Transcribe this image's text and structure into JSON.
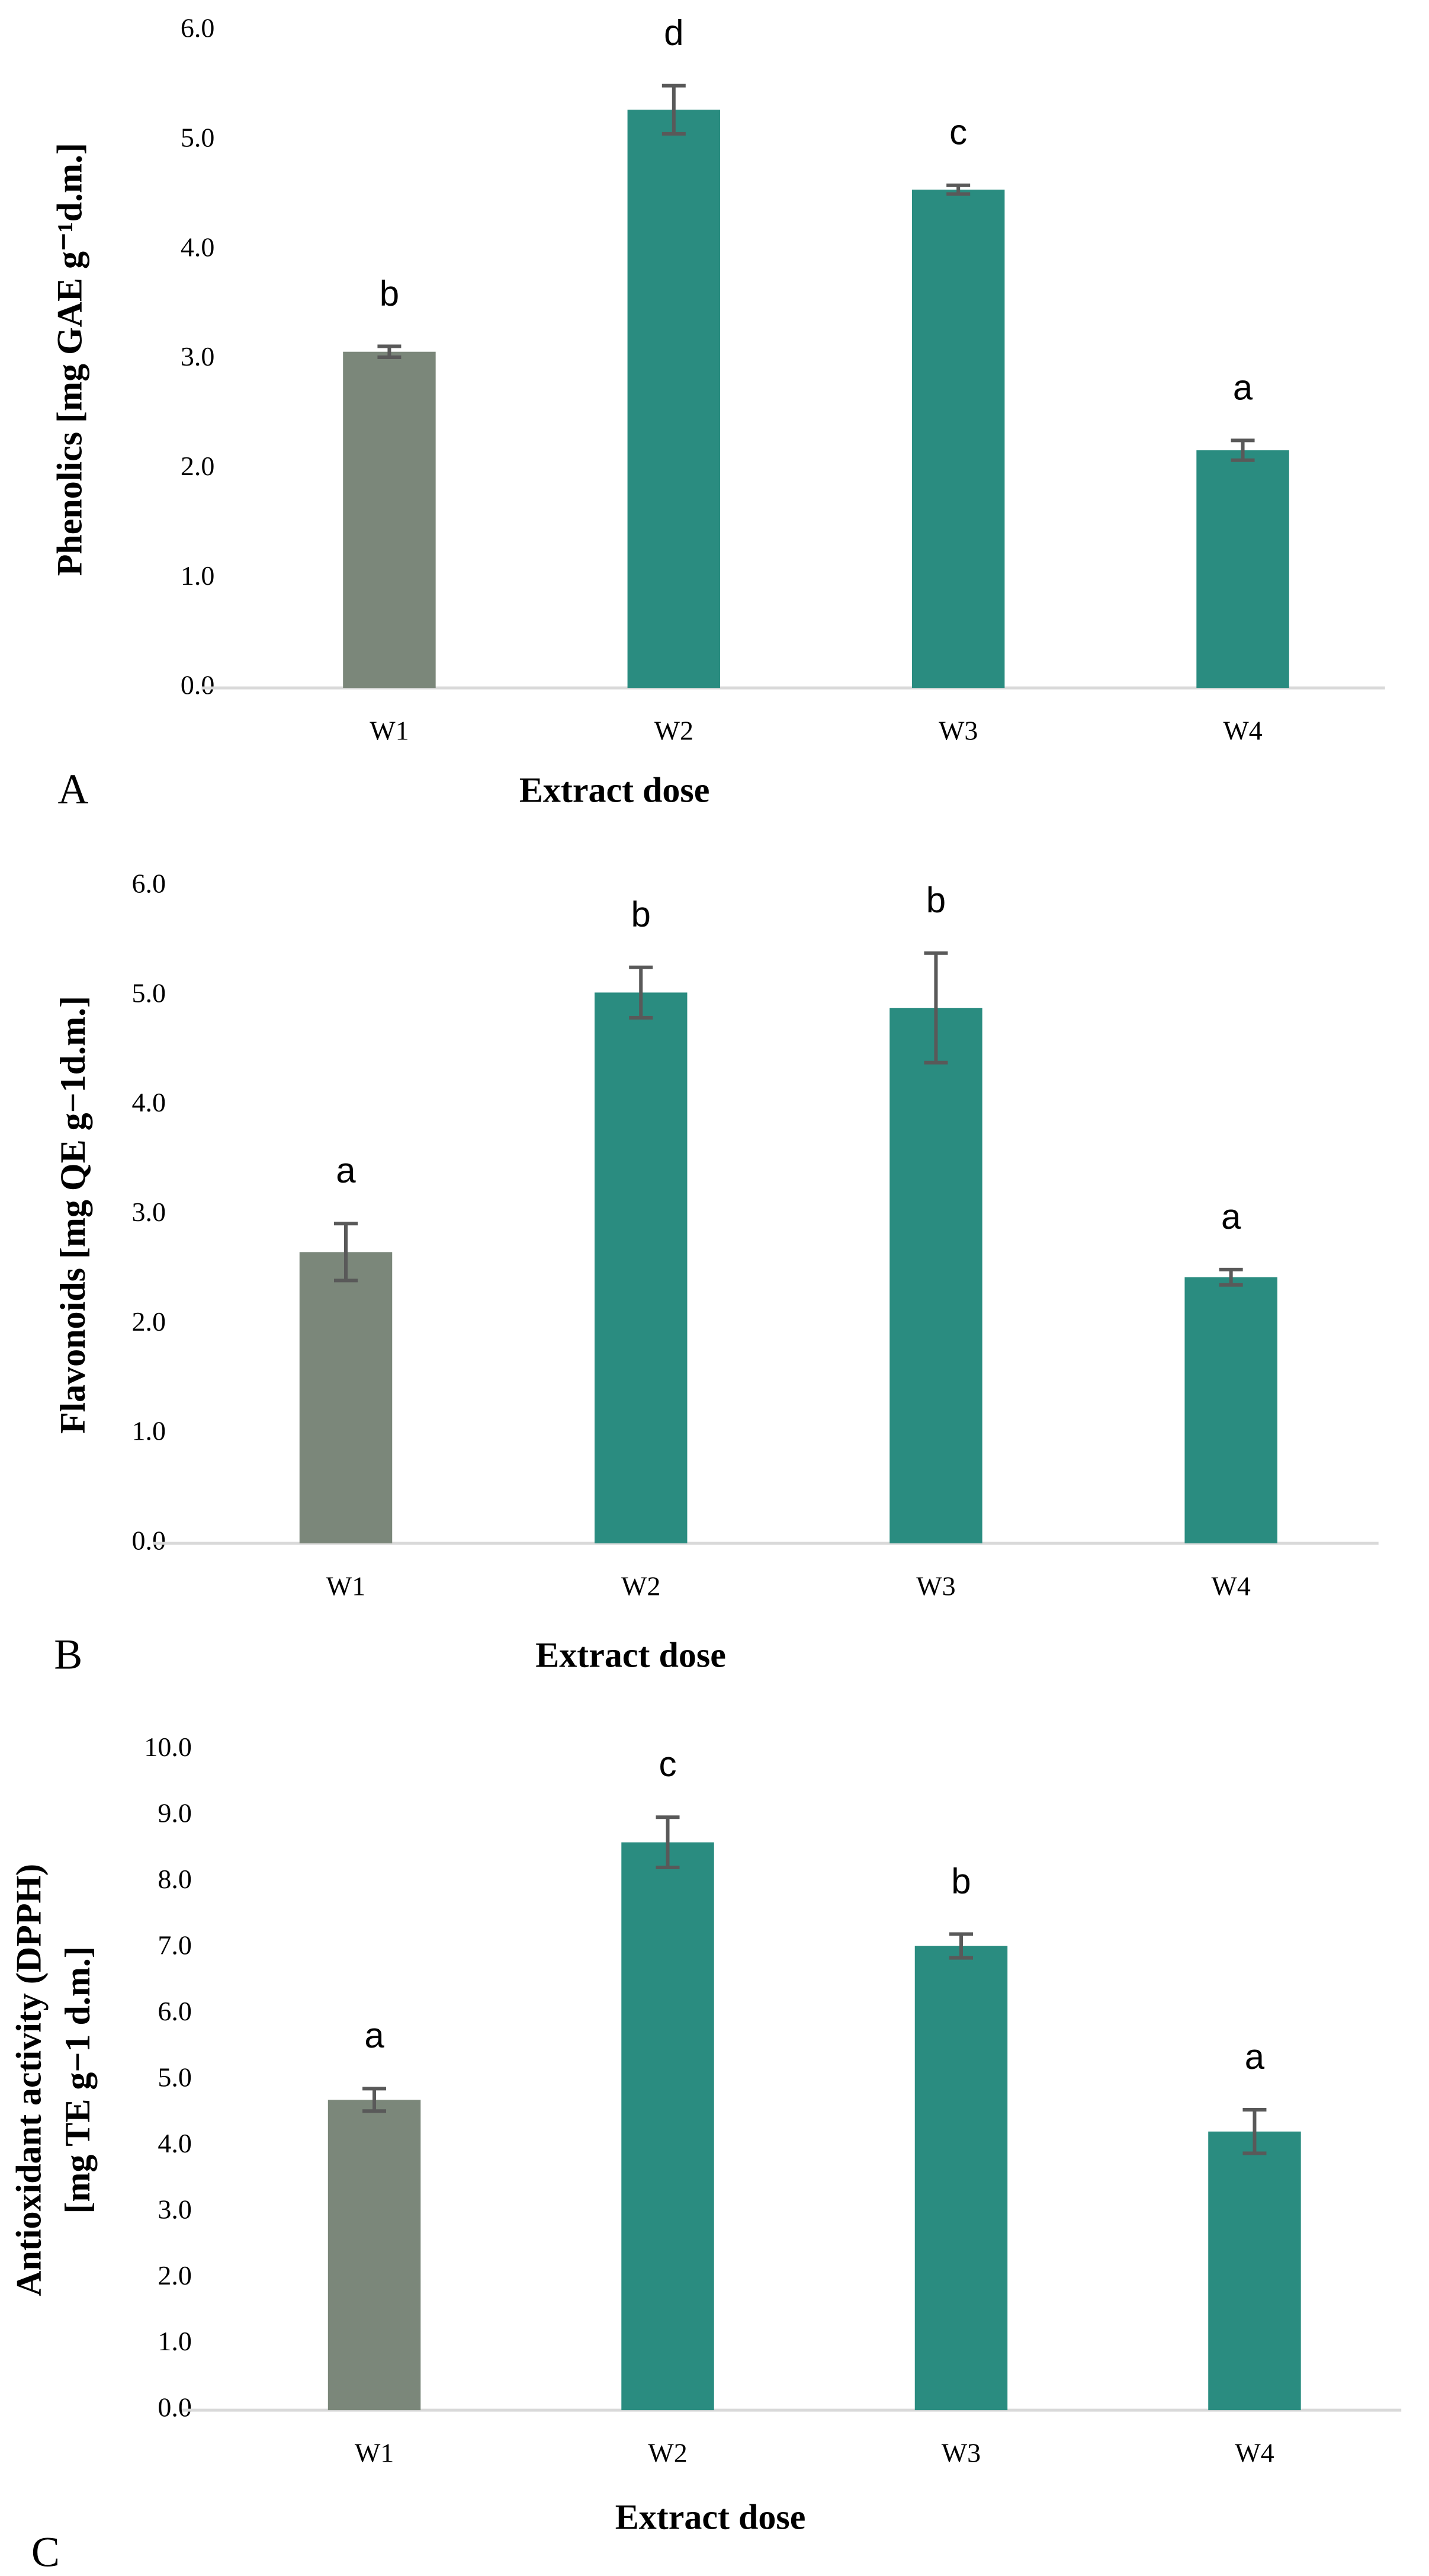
{
  "chart_data": [
    {
      "type": "bar",
      "panel_label": "A",
      "ylabel": [
        "Phenolics [mg GAE g⁻¹d.m.]"
      ],
      "xlabel": "Extract dose",
      "categories": [
        "W1",
        "W2",
        "W3",
        "W4"
      ],
      "values": [
        3.07,
        5.28,
        4.55,
        2.17
      ],
      "errors": [
        0.05,
        0.22,
        0.04,
        0.09
      ],
      "annotations": [
        "b",
        "d",
        "c",
        "a"
      ],
      "colors": [
        "#7b877a",
        "#2a8c80",
        "#2a8c80",
        "#2a8c80"
      ],
      "ylim": [
        0,
        6
      ],
      "yticks": [
        {
          "value": 0,
          "label": "0.0"
        },
        {
          "value": 1,
          "label": "1.0"
        },
        {
          "value": 2,
          "label": "2.0"
        },
        {
          "value": 3,
          "label": "3.0"
        },
        {
          "value": 4,
          "label": "4.0"
        },
        {
          "value": 5,
          "label": "5.0"
        },
        {
          "value": 6,
          "label": "6.0"
        }
      ]
    },
    {
      "type": "bar",
      "panel_label": "B",
      "ylabel": [
        "Flavonoids [mg QE g−1d.m.]"
      ],
      "xlabel": "Extract dose",
      "categories": [
        "W1",
        "W2",
        "W3",
        "W4"
      ],
      "values": [
        2.66,
        5.03,
        4.89,
        2.43
      ],
      "errors": [
        0.26,
        0.23,
        0.5,
        0.07
      ],
      "annotations": [
        "a",
        "b",
        "b",
        "a"
      ],
      "colors": [
        "#7b877a",
        "#2a8c80",
        "#2a8c80",
        "#2a8c80"
      ],
      "ylim": [
        0,
        6
      ],
      "yticks": [
        {
          "value": 0,
          "label": "0.0"
        },
        {
          "value": 1,
          "label": "1.0"
        },
        {
          "value": 2,
          "label": "2.0"
        },
        {
          "value": 3,
          "label": "3.0"
        },
        {
          "value": 4,
          "label": "4.0"
        },
        {
          "value": 5,
          "label": "5.0"
        },
        {
          "value": 6,
          "label": "6.0"
        }
      ]
    },
    {
      "type": "bar",
      "panel_label": "C",
      "ylabel": [
        "Antioxidant activity (DPPH)",
        "[mg TE g−1 d.m.]"
      ],
      "xlabel": "Extract dose",
      "categories": [
        "W1",
        "W2",
        "W3",
        "W4"
      ],
      "values": [
        4.7,
        8.6,
        7.03,
        4.22
      ],
      "errors": [
        0.17,
        0.38,
        0.18,
        0.33
      ],
      "annotations": [
        "a",
        "c",
        "b",
        "a"
      ],
      "colors": [
        "#7b877a",
        "#2a8c80",
        "#2a8c80",
        "#2a8c80"
      ],
      "ylim": [
        0,
        10
      ],
      "yticks": [
        {
          "value": 0,
          "label": "0.0"
        },
        {
          "value": 1,
          "label": "1.0"
        },
        {
          "value": 2,
          "label": "2.0"
        },
        {
          "value": 3,
          "label": "3.0"
        },
        {
          "value": 4,
          "label": "4.0"
        },
        {
          "value": 5,
          "label": "5.0"
        },
        {
          "value": 6,
          "label": "6.0"
        },
        {
          "value": 7,
          "label": "7.0"
        },
        {
          "value": 8,
          "label": "8.0"
        },
        {
          "value": 9,
          "label": "9.0"
        },
        {
          "value": 10,
          "label": "10.0"
        }
      ]
    }
  ]
}
